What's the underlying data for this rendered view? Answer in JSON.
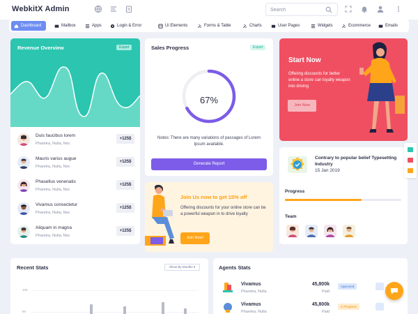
{
  "header": {
    "brand": "WebkitX Admin",
    "search_placeholder": "Search",
    "icons": [
      "globe-icon",
      "list-icon",
      "clipboard-icon",
      "expand-icon",
      "bell-icon",
      "user-icon",
      "more-icon"
    ]
  },
  "nav": {
    "items": [
      {
        "label": "Dashboard",
        "icon": "home-icon",
        "active": true
      },
      {
        "label": "Mailbox",
        "icon": "mail-icon"
      },
      {
        "label": "Apps",
        "icon": "apps-icon"
      },
      {
        "label": "Login & Error",
        "icon": "login-icon"
      },
      {
        "label": "Ui Elements",
        "icon": "ui-icon"
      },
      {
        "label": "Forms & Table",
        "icon": "forms-icon"
      },
      {
        "label": "Charts",
        "icon": "chart-icon"
      },
      {
        "label": "User Pages",
        "icon": "user-pages-icon"
      },
      {
        "label": "Widgets",
        "icon": "widgets-icon"
      },
      {
        "label": "Ecommerce",
        "icon": "cart-icon"
      },
      {
        "label": "Emails",
        "icon": "email-icon"
      }
    ]
  },
  "revenue": {
    "title": "Revenue Overview",
    "export_label": "Export",
    "rows": [
      {
        "name": "Duis faucibus lorem",
        "sub": "Pharetra, Nulla, Nec",
        "amount": "+125$"
      },
      {
        "name": "Mauris varius augue",
        "sub": "Pharetra, Nulla, Nec",
        "amount": "+125$"
      },
      {
        "name": "Phasellus venenatis",
        "sub": "Pharetra, Nulla, Nec",
        "amount": "+125$"
      },
      {
        "name": "Vivamus consectetur",
        "sub": "Pharetra, Nulla, Nec",
        "amount": "+125$"
      },
      {
        "name": "Aliquam in magna",
        "sub": "Pharetra, Nulla, Nec",
        "amount": "+125$"
      }
    ]
  },
  "sales": {
    "title": "Sales Progress",
    "export_label": "Export",
    "percent": 67,
    "percent_label": "67%",
    "notes": "Notes: There are many variations of passages of Lorem Ipsum available.",
    "button_label": "Generate Report"
  },
  "start": {
    "title": "Start Now",
    "text": "Offering discounts for better online a store can loyalty weapon into driving",
    "button_label": "Join Now"
  },
  "join": {
    "title": "Join Us now to get 15% off",
    "text": "Offering discounts for your online store can be a powerful weapon in to drive loyalty",
    "button_label": "Join Now!"
  },
  "contrary": {
    "title": "Contrary to popular belief Typesetting Industry",
    "date": "15 Jan 2019",
    "progress_label": "Progress",
    "progress": 0.66,
    "team_label": "Team"
  },
  "recent": {
    "title": "Recent Stats",
    "dropdown_label": "Show By Months ▾",
    "axis": [
      "100",
      "80"
    ]
  },
  "agents": {
    "title": "Agents Stats",
    "rows": [
      {
        "name": "Vivamus",
        "sub": "Pharetra, Nulla",
        "amount": "45,800k",
        "paid": "Paid",
        "status": "Approved",
        "status_color": "#d9e6fb",
        "status_text_color": "#4a7bd6"
      },
      {
        "name": "Vivamus",
        "sub": "Pharetra, Nulla",
        "amount": "45,800k",
        "paid": "Paid",
        "status": "In Progress",
        "status_color": "#ffeccc",
        "status_text_color": "#e8940a"
      }
    ]
  },
  "colors": {
    "accent": "#6d8df2",
    "teal": "#2bc5b0",
    "purple": "#7c5ce8",
    "coral": "#f04f62",
    "orange": "#ffa51a"
  }
}
